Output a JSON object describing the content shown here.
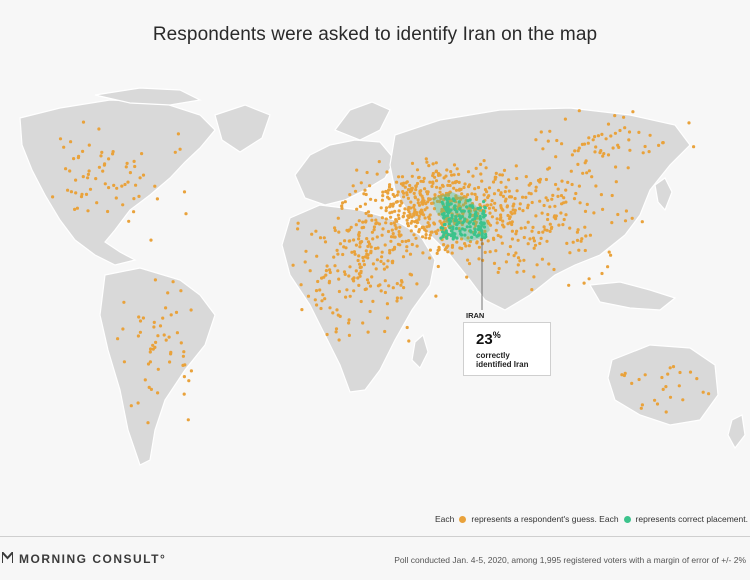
{
  "title": "Respondents were asked to identify Iran on the map",
  "callout": {
    "place_label": "IRAN",
    "percent": "23",
    "percent_sign": "%",
    "line1": "correctly",
    "line2": "identified Iran"
  },
  "legend": {
    "each1": "Each",
    "guess_text": "represents a respondent's guess. Each",
    "correct_text": "represents correct placement."
  },
  "footer": {
    "logo": "MORNING CONSULT",
    "logo_mark": "°",
    "note": "Poll conducted Jan. 4-5, 2020, among 1,995 registered voters with a margin of error of +/- 2%"
  },
  "colors": {
    "guess_dot": "#e9a23b",
    "correct_dot": "#3cc38c",
    "land": "#d9d9d9",
    "background": "#f7f7f7"
  },
  "icons": {
    "logo_mark": "morning-consult-logo-icon",
    "guess_dot": "orange-dot-icon",
    "correct_dot": "green-dot-icon"
  }
}
